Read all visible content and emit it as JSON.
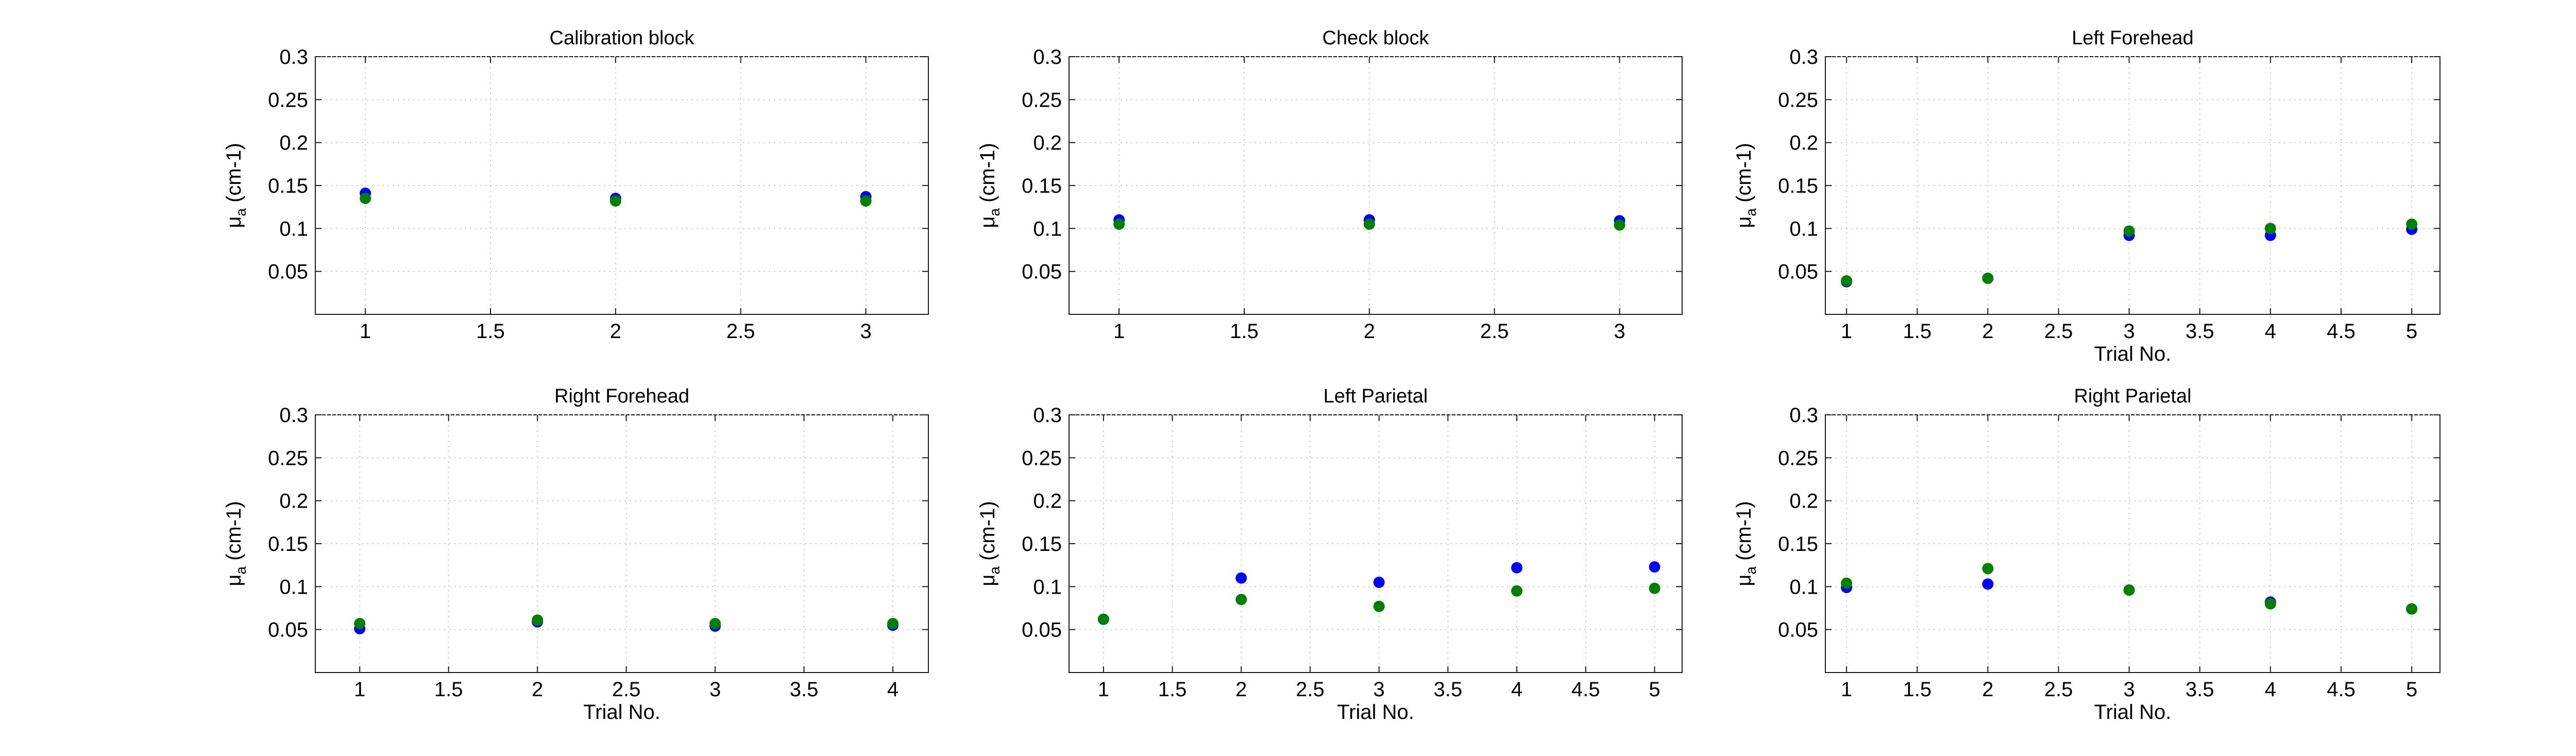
{
  "chart_data": [
    {
      "type": "scatter",
      "title": "Calibration block",
      "xlabel": "",
      "ylabel": "μ",
      "ylabel_sub": "a",
      "ylabel_unit": " (cm-1)",
      "xlim": [
        0.8,
        3.25
      ],
      "ylim": [
        0,
        0.3
      ],
      "xticks": [
        "1",
        "1.5",
        "2",
        "2.5",
        "3"
      ],
      "yticks": [
        "0.05",
        "0.1",
        "0.15",
        "0.2",
        "0.25",
        "0.3"
      ],
      "grid": true,
      "series": [
        {
          "color": "#0000ff",
          "x": [
            1,
            2,
            3
          ],
          "y": [
            0.141,
            0.135,
            0.137
          ]
        },
        {
          "color": "#008000",
          "x": [
            1,
            2,
            3
          ],
          "y": [
            0.135,
            0.132,
            0.132
          ]
        }
      ]
    },
    {
      "type": "scatter",
      "title": "Check block",
      "xlabel": "",
      "ylabel": "μ",
      "ylabel_sub": "a",
      "ylabel_unit": " (cm-1)",
      "xlim": [
        0.8,
        3.25
      ],
      "ylim": [
        0,
        0.3
      ],
      "xticks": [
        "1",
        "1.5",
        "2",
        "2.5",
        "3"
      ],
      "yticks": [
        "0.05",
        "0.1",
        "0.15",
        "0.2",
        "0.25",
        "0.3"
      ],
      "grid": true,
      "series": [
        {
          "color": "#0000ff",
          "x": [
            1,
            2,
            3
          ],
          "y": [
            0.11,
            0.11,
            0.109
          ]
        },
        {
          "color": "#008000",
          "x": [
            1,
            2,
            3
          ],
          "y": [
            0.105,
            0.105,
            0.104
          ]
        }
      ]
    },
    {
      "type": "scatter",
      "title": "Left Forehead",
      "xlabel": "Trial No.",
      "ylabel": "μ",
      "ylabel_sub": "a",
      "ylabel_unit": " (cm-1)",
      "xlim": [
        0.85,
        5.2
      ],
      "ylim": [
        0,
        0.3
      ],
      "xticks": [
        "1",
        "1.5",
        "2",
        "2.5",
        "3",
        "3.5",
        "4",
        "4.5",
        "5"
      ],
      "yticks": [
        "0.05",
        "0.1",
        "0.15",
        "0.2",
        "0.25",
        "0.3"
      ],
      "grid": true,
      "series": [
        {
          "color": "#0000ff",
          "x": [
            1,
            2,
            3,
            4,
            5
          ],
          "y": [
            0.038,
            0.042,
            0.092,
            0.092,
            0.099
          ]
        },
        {
          "color": "#008000",
          "x": [
            1,
            2,
            3,
            4,
            5
          ],
          "y": [
            0.039,
            0.042,
            0.097,
            0.1,
            0.105
          ]
        }
      ]
    },
    {
      "type": "scatter",
      "title": "Right Forehead",
      "xlabel": "Trial No.",
      "ylabel": "μ",
      "ylabel_sub": "a",
      "ylabel_unit": " (cm-1)",
      "xlim": [
        0.75,
        4.2
      ],
      "ylim": [
        0,
        0.3
      ],
      "xticks": [
        "1",
        "1.5",
        "2",
        "2.5",
        "3",
        "3.5",
        "4"
      ],
      "yticks": [
        "0.05",
        "0.1",
        "0.15",
        "0.2",
        "0.25",
        "0.3"
      ],
      "grid": true,
      "series": [
        {
          "color": "#0000ff",
          "x": [
            1,
            2,
            3,
            4
          ],
          "y": [
            0.051,
            0.059,
            0.054,
            0.055
          ]
        },
        {
          "color": "#008000",
          "x": [
            1,
            2,
            3,
            4
          ],
          "y": [
            0.057,
            0.061,
            0.057,
            0.057
          ]
        }
      ]
    },
    {
      "type": "scatter",
      "title": "Left Parietal",
      "xlabel": "Trial No.",
      "ylabel": "μ",
      "ylabel_sub": "a",
      "ylabel_unit": " (cm-1)",
      "xlim": [
        0.75,
        5.2
      ],
      "ylim": [
        0,
        0.3
      ],
      "xticks": [
        "1",
        "1.5",
        "2",
        "2.5",
        "3",
        "3.5",
        "4",
        "4.5",
        "5"
      ],
      "yticks": [
        "0.05",
        "0.1",
        "0.15",
        "0.2",
        "0.25",
        "0.3"
      ],
      "grid": true,
      "series": [
        {
          "color": "#0000ff",
          "x": [
            1,
            2,
            3,
            4,
            5
          ],
          "y": [
            0.062,
            0.11,
            0.105,
            0.122,
            0.123
          ]
        },
        {
          "color": "#008000",
          "x": [
            1,
            2,
            3,
            4,
            5
          ],
          "y": [
            0.062,
            0.085,
            0.077,
            0.095,
            0.098
          ]
        }
      ]
    },
    {
      "type": "scatter",
      "title": "Right Parietal",
      "xlabel": "Trial No.",
      "ylabel": "μ",
      "ylabel_sub": "a",
      "ylabel_unit": " (cm-1)",
      "xlim": [
        0.85,
        5.2
      ],
      "ylim": [
        0,
        0.3
      ],
      "xticks": [
        "1",
        "1.5",
        "2",
        "2.5",
        "3",
        "3.5",
        "4",
        "4.5",
        "5"
      ],
      "yticks": [
        "0.05",
        "0.1",
        "0.15",
        "0.2",
        "0.25",
        "0.3"
      ],
      "grid": true,
      "series": [
        {
          "color": "#0000ff",
          "x": [
            1,
            2,
            3,
            4,
            5
          ],
          "y": [
            0.099,
            0.103,
            0.096,
            0.082,
            0.074
          ]
        },
        {
          "color": "#008000",
          "x": [
            1,
            2,
            3,
            4,
            5
          ],
          "y": [
            0.104,
            0.121,
            0.096,
            0.08,
            0.074
          ]
        }
      ]
    }
  ]
}
